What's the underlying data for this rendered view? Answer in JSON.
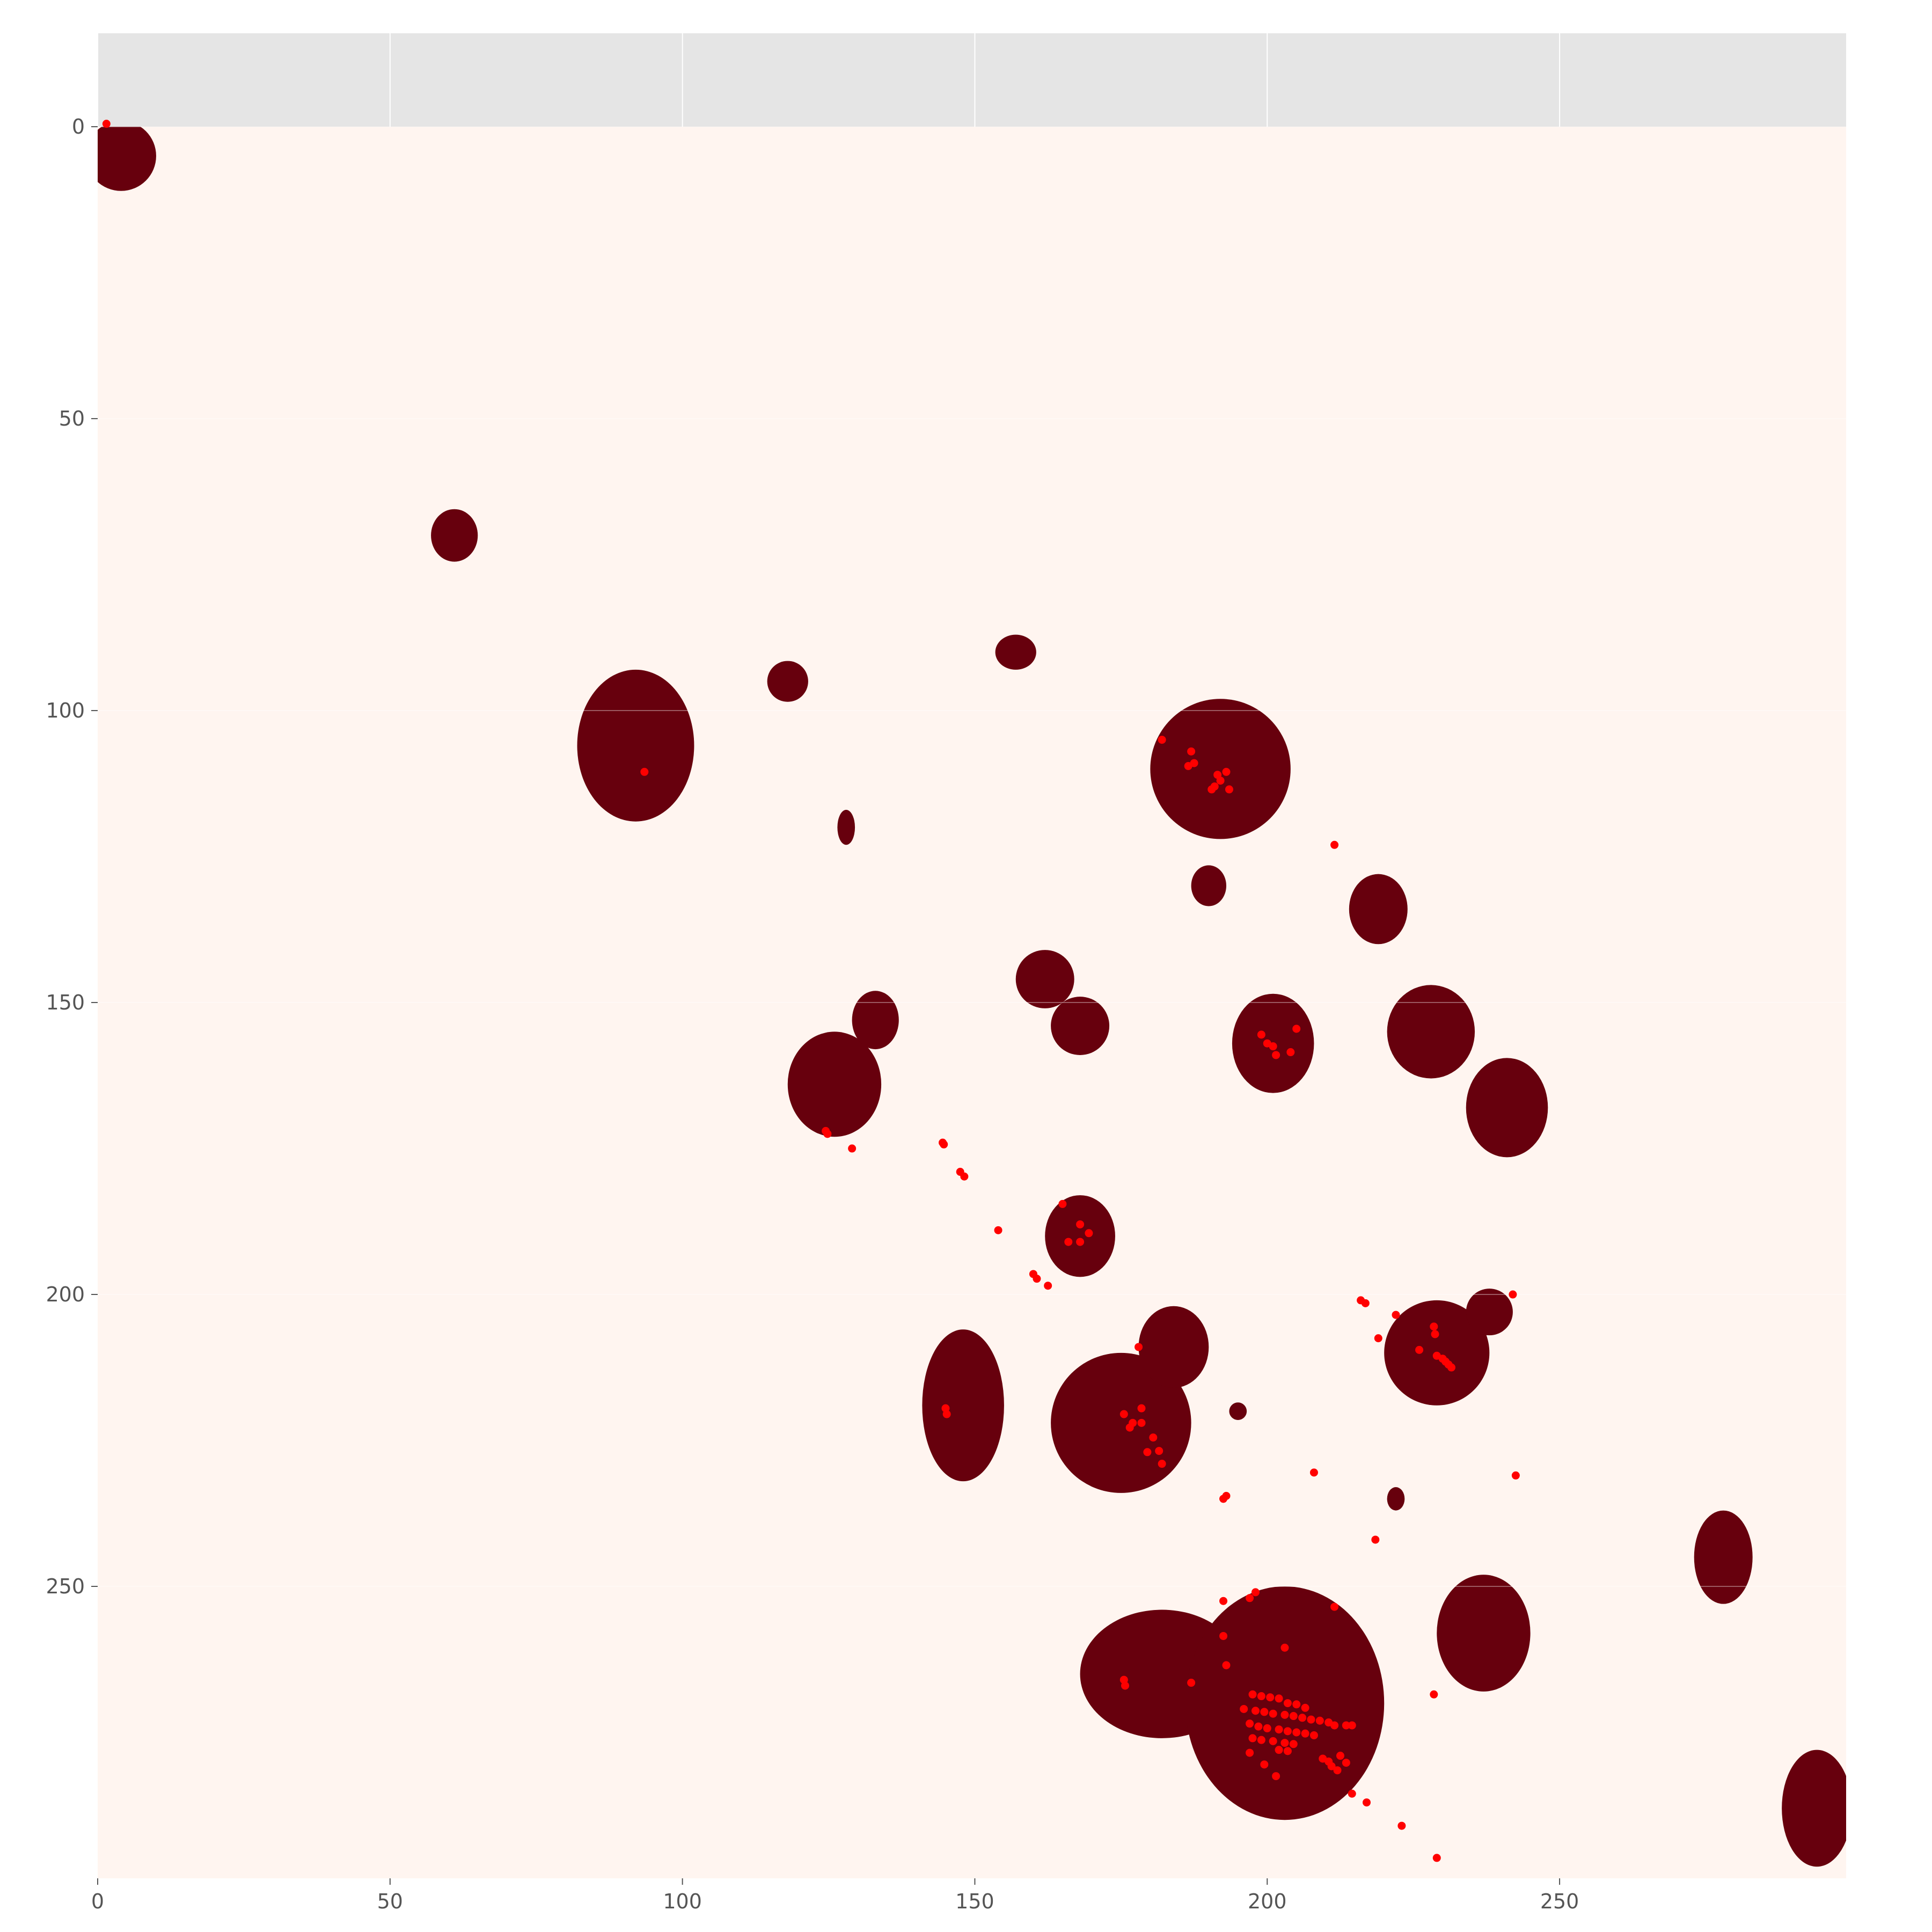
{
  "chart_data": {
    "type": "scatter",
    "title": "",
    "xlabel": "",
    "ylabel": "",
    "xlim": [
      0,
      299
    ],
    "ylim": [
      300,
      -16
    ],
    "y_inverted": true,
    "grid": true,
    "xticks": [
      0,
      50,
      100,
      150,
      200,
      250
    ],
    "yticks": [
      0,
      50,
      100,
      150,
      200,
      250
    ],
    "xtick_labels": [
      "0",
      "50",
      "100",
      "150",
      "200",
      "250"
    ],
    "ytick_labels": [
      "0",
      "50",
      "100",
      "150",
      "200",
      "250"
    ],
    "colors": {
      "axes_background": "#e5e5e5",
      "mask_background": "#fff5f0",
      "mask_region": "#67000d",
      "points": "#ff0000",
      "grid": "#ffffff",
      "tick_text": "#555555"
    },
    "mask_image": {
      "extent_x": [
        0,
        299
      ],
      "extent_y": [
        0,
        300
      ],
      "regions": [
        {
          "cx": 4,
          "cy": 5,
          "rx": 6,
          "ry": 6
        },
        {
          "cx": 61,
          "cy": 70,
          "rx": 4,
          "ry": 4.5
        },
        {
          "cx": 92,
          "cy": 106,
          "rx": 10,
          "ry": 13
        },
        {
          "cx": 118,
          "cy": 95,
          "rx": 3.5,
          "ry": 3.5
        },
        {
          "cx": 157,
          "cy": 90,
          "rx": 3.5,
          "ry": 3
        },
        {
          "cx": 128,
          "cy": 120,
          "rx": 1.5,
          "ry": 3
        },
        {
          "cx": 192,
          "cy": 110,
          "rx": 12,
          "ry": 12
        },
        {
          "cx": 190,
          "cy": 130,
          "rx": 3,
          "ry": 3.5
        },
        {
          "cx": 219,
          "cy": 134,
          "rx": 5,
          "ry": 6
        },
        {
          "cx": 162,
          "cy": 146,
          "rx": 5,
          "ry": 5
        },
        {
          "cx": 168,
          "cy": 154,
          "rx": 5,
          "ry": 5
        },
        {
          "cx": 201,
          "cy": 157,
          "rx": 7,
          "ry": 8.5
        },
        {
          "cx": 228,
          "cy": 155,
          "rx": 7.5,
          "ry": 8
        },
        {
          "cx": 241,
          "cy": 168,
          "rx": 7,
          "ry": 8.5
        },
        {
          "cx": 126,
          "cy": 164,
          "rx": 8,
          "ry": 9
        },
        {
          "cx": 133,
          "cy": 153,
          "rx": 4,
          "ry": 5
        },
        {
          "cx": 168,
          "cy": 190,
          "rx": 6,
          "ry": 7
        },
        {
          "cx": 148,
          "cy": 219,
          "rx": 7,
          "ry": 13
        },
        {
          "cx": 175,
          "cy": 222,
          "rx": 12,
          "ry": 12
        },
        {
          "cx": 184,
          "cy": 209,
          "rx": 6,
          "ry": 7
        },
        {
          "cx": 195,
          "cy": 220,
          "rx": 1.5,
          "ry": 1.5
        },
        {
          "cx": 229,
          "cy": 210,
          "rx": 9,
          "ry": 9
        },
        {
          "cx": 238,
          "cy": 203,
          "rx": 4,
          "ry": 4
        },
        {
          "cx": 222,
          "cy": 235,
          "rx": 1.5,
          "ry": 2
        },
        {
          "cx": 278,
          "cy": 245,
          "rx": 5,
          "ry": 8
        },
        {
          "cx": 237,
          "cy": 258,
          "rx": 8,
          "ry": 10
        },
        {
          "cx": 182,
          "cy": 265,
          "rx": 14,
          "ry": 11
        },
        {
          "cx": 203,
          "cy": 270,
          "rx": 17,
          "ry": 20
        },
        {
          "cx": 294,
          "cy": 288,
          "rx": 6,
          "ry": 10
        }
      ]
    },
    "series": [
      {
        "points": [
          [
            1.5,
            -0.5
          ],
          [
            93.5,
            110.5
          ],
          [
            182,
            105
          ],
          [
            187,
            107
          ],
          [
            187.5,
            109
          ],
          [
            186.5,
            109.5
          ],
          [
            191.5,
            111
          ],
          [
            192,
            112
          ],
          [
            191,
            113
          ],
          [
            190.5,
            113.5
          ],
          [
            193,
            110.5
          ],
          [
            193.5,
            113.5
          ],
          [
            211.5,
            123
          ],
          [
            199,
            155.5
          ],
          [
            200,
            157
          ],
          [
            201,
            157.5
          ],
          [
            201.5,
            159
          ],
          [
            204,
            158.5
          ],
          [
            205,
            154.5
          ],
          [
            124.5,
            172
          ],
          [
            124.8,
            172.5
          ],
          [
            129,
            175
          ],
          [
            144.5,
            174
          ],
          [
            144.7,
            174.3
          ],
          [
            147.5,
            179
          ],
          [
            148.2,
            179.8
          ],
          [
            154,
            189
          ],
          [
            165,
            184.5
          ],
          [
            168,
            188
          ],
          [
            169.5,
            189.5
          ],
          [
            168,
            191
          ],
          [
            166,
            191
          ],
          [
            160,
            196.5
          ],
          [
            160.6,
            197.3
          ],
          [
            162.5,
            198.5
          ],
          [
            216,
            201
          ],
          [
            216.8,
            201.5
          ],
          [
            222,
            203.5
          ],
          [
            219,
            207.5
          ],
          [
            228.5,
            205.5
          ],
          [
            228.7,
            206.8
          ],
          [
            226,
            209.5
          ],
          [
            229,
            210.5
          ],
          [
            230,
            211
          ],
          [
            230.5,
            211.5
          ],
          [
            231,
            212
          ],
          [
            231.5,
            212.5
          ],
          [
            242,
            200
          ],
          [
            178,
            209
          ],
          [
            145,
            219.5
          ],
          [
            145.2,
            220.5
          ],
          [
            175.5,
            220.5
          ],
          [
            178.5,
            219.5
          ],
          [
            177,
            222
          ],
          [
            176.5,
            222.8
          ],
          [
            178.5,
            222
          ],
          [
            180.5,
            224.5
          ],
          [
            179.5,
            227
          ],
          [
            181.5,
            226.8
          ],
          [
            182,
            229
          ],
          [
            208,
            230.5
          ],
          [
            242.5,
            231
          ],
          [
            192.5,
            235
          ],
          [
            193,
            234.5
          ],
          [
            218.5,
            242
          ],
          [
            198,
            251
          ],
          [
            197,
            252
          ],
          [
            192.5,
            252.5
          ],
          [
            211.5,
            253.5
          ],
          [
            192.5,
            258.5
          ],
          [
            203,
            260.5
          ],
          [
            193,
            263.5
          ],
          [
            175.5,
            266
          ],
          [
            175.7,
            267
          ],
          [
            187,
            266.5
          ],
          [
            228.5,
            268.5
          ],
          [
            197.5,
            268.5
          ],
          [
            199,
            268.8
          ],
          [
            200.5,
            269
          ],
          [
            202,
            269.2
          ],
          [
            203.5,
            270
          ],
          [
            205,
            270.2
          ],
          [
            206.5,
            270.8
          ],
          [
            196,
            271
          ],
          [
            198,
            271.3
          ],
          [
            199.5,
            271.5
          ],
          [
            201,
            271.8
          ],
          [
            203,
            272
          ],
          [
            204.5,
            272.2
          ],
          [
            206,
            272.5
          ],
          [
            207.5,
            272.8
          ],
          [
            209,
            273
          ],
          [
            210.5,
            273.3
          ],
          [
            211.5,
            273.8
          ],
          [
            213.5,
            273.8
          ],
          [
            214.5,
            273.8
          ],
          [
            197,
            273.5
          ],
          [
            198.5,
            274
          ],
          [
            200,
            274.3
          ],
          [
            202,
            274.5
          ],
          [
            203.5,
            274.8
          ],
          [
            205,
            275
          ],
          [
            206.5,
            275.2
          ],
          [
            208,
            275.5
          ],
          [
            197.5,
            276
          ],
          [
            199,
            276.3
          ],
          [
            201,
            276.5
          ],
          [
            203,
            276.8
          ],
          [
            204.5,
            277
          ],
          [
            202,
            278
          ],
          [
            203.5,
            278.2
          ],
          [
            197,
            278.5
          ],
          [
            209.5,
            279.5
          ],
          [
            210.5,
            280
          ],
          [
            212.5,
            279
          ],
          [
            213.5,
            280.2
          ],
          [
            211,
            280.8
          ],
          [
            212,
            281.5
          ],
          [
            199.5,
            280.5
          ],
          [
            201.5,
            282.5
          ],
          [
            214.5,
            285.5
          ],
          [
            217,
            287
          ],
          [
            223,
            291
          ],
          [
            229,
            296.5
          ]
        ]
      }
    ]
  }
}
